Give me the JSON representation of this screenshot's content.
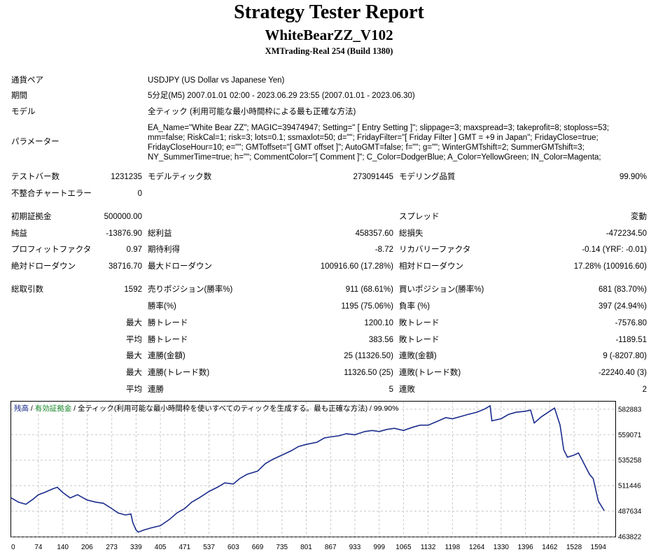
{
  "header": {
    "title": "Strategy Tester Report",
    "ea_name": "WhiteBearZZ_V102",
    "server": "XMTrading-Real 254 (Build 1380)"
  },
  "info": {
    "symbol_label": "通貨ペア",
    "symbol_value": "USDJPY (US Dollar vs Japanese Yen)",
    "period_label": "期間",
    "period_value": "5分足(M5) 2007.01.01 02:00 - 2023.06.29 23:55 (2007.01.01 - 2023.06.30)",
    "model_label": "モデル",
    "model_value": "全ティック (利用可能な最小時間枠による最も正確な方法)",
    "params_label": "パラメーター",
    "params_value": "EA_Name=\"White Bear ZZ\"; MAGIC=39474947; Setting=\" [ Entry Setting ]\"; slippage=3; maxspread=3; takeprofit=8; stoploss=53; mm=false; RiskCal=1; risk=3; lots=0.1; ssmaxlot=50; d=\"\"; FridayFilter=\"[ Friday Filter ] GMT = +9 in Japan\"; FridayClose=true; FridayCloseHour=10; e=\"\"; GMToffset=\"[ GMT offset ]\"; AutoGMT=false; f=\"\"; g=\"\"; WinterGMTshift=2; SummerGMTshift=3; NY_SummerTime=true; h=\"\"; CommentColor=\"[ Comment ]\"; C_Color=DodgerBlue; A_Color=YellowGreen; IN_Color=Magenta;"
  },
  "stats": {
    "bars_label": "テストバー数",
    "bars_value": "1231235",
    "ticks_label": "モデルティック数",
    "ticks_value": "273091445",
    "quality_label": "モデリング品質",
    "quality_value": "99.90%",
    "mismatch_label": "不整合チャートエラー",
    "mismatch_value": "0",
    "deposit_label": "初期証拠金",
    "deposit_value": "500000.00",
    "spread_label": "スプレッド",
    "spread_value": "変動",
    "net_label": "純益",
    "net_value": "-13876.90",
    "gross_profit_label": "総利益",
    "gross_profit_value": "458357.60",
    "gross_loss_label": "総損失",
    "gross_loss_value": "-472234.50",
    "pf_label": "プロフィットファクタ",
    "pf_value": "0.97",
    "payoff_label": "期待利得",
    "payoff_value": "-8.72",
    "recovery_label": "リカバリーファクタ",
    "recovery_value": "-0.14 (YRF: -0.01)",
    "abs_dd_label": "絶対ドローダウン",
    "abs_dd_value": "38716.70",
    "max_dd_label": "最大ドローダウン",
    "max_dd_value": "100916.60 (17.28%)",
    "rel_dd_label": "相対ドローダウン",
    "rel_dd_value": "17.28% (100916.60)",
    "trades_label": "総取引数",
    "trades_value": "1592",
    "short_label": "売りポジション(勝率%)",
    "short_value": "911 (68.61%)",
    "long_label": "買いポジション(勝率%)",
    "long_value": "681 (83.70%)",
    "win_pct_label": "勝率(%)",
    "win_pct_value": "1195 (75.06%)",
    "loss_pct_label": "負率 (%)",
    "loss_pct_value": "397 (24.94%)",
    "q_max": "最大",
    "q_avg": "平均",
    "largest_win_label": "勝トレード",
    "largest_win_value": "1200.10",
    "largest_loss_label": "敗トレード",
    "largest_loss_value": "-7576.80",
    "avg_win_label": "勝トレード",
    "avg_win_value": "383.56",
    "avg_loss_label": "敗トレード",
    "avg_loss_value": "-1189.51",
    "max_cons_wins_label": "連勝(金額)",
    "max_cons_wins_value": "25 (11326.50)",
    "max_cons_losses_label": "連敗(金額)",
    "max_cons_losses_value": "9 (-8207.80)",
    "max_cons_profit_label": "連勝(トレード数)",
    "max_cons_profit_value": "11326.50 (25)",
    "max_cons_loss_label": "連敗(トレード数)",
    "max_cons_loss_value": "-22240.40 (3)",
    "avg_cons_wins_label": "連勝",
    "avg_cons_wins_value": "5",
    "avg_cons_losses_label": "連敗",
    "avg_cons_losses_value": "2"
  },
  "legend": {
    "balance": "残高",
    "sep1": " / ",
    "equity": "有効証拠金",
    "sep2": " / ",
    "model": "全ティック(利用可能な最小時間枠を使いすべてのティックを生成する。最も正確な方法) / 99.90%"
  },
  "chart_data": {
    "type": "line",
    "xlabel": "",
    "ylabel": "",
    "xlim": [
      0,
      1640
    ],
    "ylim": [
      463822,
      590000
    ],
    "x_ticks": [
      0,
      74,
      140,
      206,
      273,
      339,
      405,
      471,
      537,
      603,
      669,
      735,
      801,
      867,
      933,
      999,
      1065,
      1132,
      1198,
      1264,
      1330,
      1396,
      1462,
      1528,
      1594
    ],
    "y_ticks": [
      463822,
      487634,
      511446,
      535258,
      559071,
      582883
    ],
    "grid": true,
    "line_color": "#1a2c8c",
    "series": [
      {
        "name": "残高",
        "x": [
          0,
          20,
          40,
          60,
          74,
          90,
          110,
          125,
          140,
          160,
          180,
          206,
          230,
          250,
          273,
          290,
          310,
          325,
          330,
          339,
          345,
          360,
          380,
          405,
          430,
          450,
          471,
          490,
          510,
          537,
          560,
          580,
          603,
          620,
          640,
          669,
          690,
          710,
          735,
          760,
          780,
          801,
          830,
          850,
          867,
          890,
          910,
          933,
          960,
          980,
          999,
          1020,
          1040,
          1065,
          1090,
          1110,
          1132,
          1160,
          1180,
          1198,
          1220,
          1240,
          1264,
          1285,
          1300,
          1305,
          1330,
          1350,
          1370,
          1396,
          1410,
          1420,
          1440,
          1462,
          1475,
          1490,
          1500,
          1510,
          1528,
          1540,
          1555,
          1570,
          1580,
          1594,
          1610
        ],
        "values": [
          500000,
          496000,
          494000,
          499000,
          503000,
          505000,
          508000,
          510000,
          505000,
          500000,
          503000,
          498000,
          496000,
          495000,
          490000,
          486000,
          484000,
          485000,
          477000,
          470000,
          468000,
          470000,
          472000,
          474000,
          480000,
          486000,
          490000,
          496000,
          500000,
          506000,
          510000,
          514000,
          513000,
          518000,
          522000,
          525000,
          532000,
          536000,
          540000,
          544000,
          548000,
          550000,
          552000,
          556000,
          557000,
          558000,
          560000,
          559000,
          562000,
          563000,
          562000,
          564000,
          565000,
          563000,
          566000,
          568000,
          568000,
          572000,
          575000,
          574000,
          576000,
          578000,
          580000,
          583000,
          586000,
          572000,
          574000,
          578000,
          580000,
          581000,
          582000,
          570000,
          576000,
          581000,
          584000,
          568000,
          545000,
          538000,
          540000,
          542000,
          532000,
          522000,
          518000,
          497000,
          488000
        ]
      }
    ]
  }
}
